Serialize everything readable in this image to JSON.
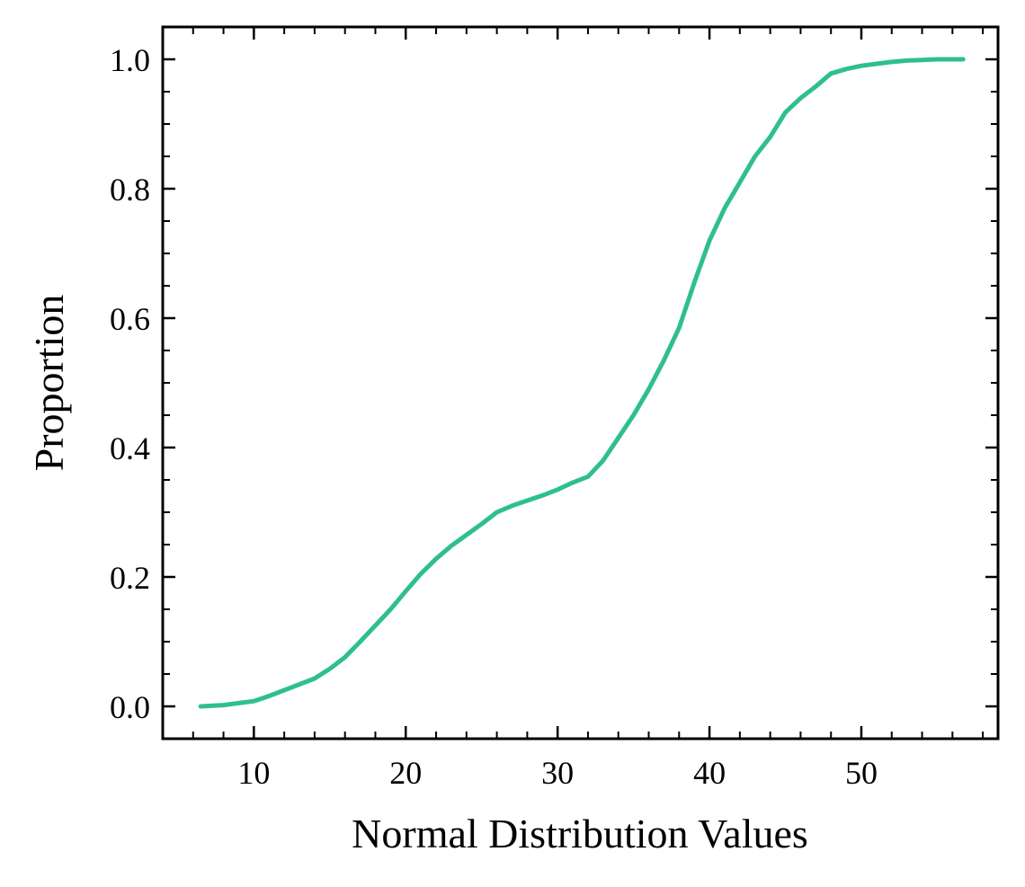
{
  "chart_data": {
    "type": "line",
    "title": "",
    "xlabel": "Normal Distribution Values",
    "ylabel": "Proportion",
    "xlim": [
      4,
      59
    ],
    "ylim": [
      -0.05,
      1.05
    ],
    "xticks": [
      10,
      20,
      30,
      40,
      50
    ],
    "xtick_labels": [
      "10",
      "20",
      "30",
      "40",
      "50"
    ],
    "yticks": [
      0.0,
      0.2,
      0.4,
      0.6,
      0.8,
      1.0
    ],
    "ytick_labels": [
      "0.0",
      "0.2",
      "0.4",
      "0.6",
      "0.8",
      "1.0"
    ],
    "grid": false,
    "legend": "none",
    "series": [
      {
        "color": "#2fbf8f",
        "x": [
          6.5,
          8,
          9,
          10,
          11,
          12,
          13,
          14,
          15,
          16,
          17,
          18,
          19,
          20,
          21,
          22,
          23,
          24,
          25,
          26,
          27,
          28,
          29,
          30,
          31,
          32,
          33,
          34,
          35,
          36,
          37,
          38,
          39,
          40,
          41,
          42,
          43,
          44,
          45,
          46,
          47,
          48,
          49,
          50,
          51,
          52,
          53,
          54,
          55,
          56.7
        ],
        "y": [
          0.0,
          0.002,
          0.005,
          0.008,
          0.016,
          0.025,
          0.034,
          0.043,
          0.058,
          0.076,
          0.1,
          0.125,
          0.15,
          0.178,
          0.205,
          0.228,
          0.248,
          0.265,
          0.282,
          0.3,
          0.31,
          0.318,
          0.326,
          0.335,
          0.346,
          0.355,
          0.38,
          0.415,
          0.45,
          0.49,
          0.535,
          0.585,
          0.655,
          0.72,
          0.77,
          0.81,
          0.85,
          0.88,
          0.918,
          0.94,
          0.958,
          0.978,
          0.985,
          0.99,
          0.993,
          0.996,
          0.998,
          0.999,
          1.0,
          1.0
        ]
      }
    ]
  }
}
